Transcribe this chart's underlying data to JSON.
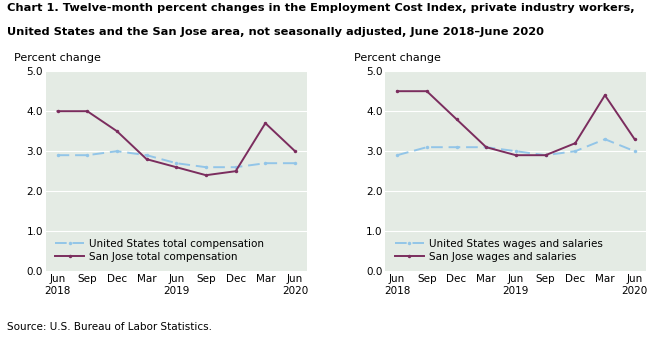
{
  "title_line1": "Chart 1. Twelve-month percent changes in the Employment Cost Index, private industry workers,",
  "title_line2": "United States and the San Jose area, not seasonally adjusted, June 2018–June 2020",
  "source": "Source: U.S. Bureau of Labor Statistics.",
  "x_labels": [
    "Jun\n2018",
    "Sep",
    "Dec",
    "Mar",
    "Jun\n2019",
    "Sep",
    "Dec",
    "Mar",
    "Jun\n2020"
  ],
  "x_positions": [
    0,
    1,
    2,
    3,
    4,
    5,
    6,
    7,
    8
  ],
  "left_chart": {
    "ylabel": "Percent change",
    "us_total_comp": [
      2.9,
      2.9,
      3.0,
      2.9,
      2.7,
      2.6,
      2.6,
      2.7,
      2.7
    ],
    "sj_total_comp": [
      4.0,
      4.0,
      3.5,
      2.8,
      2.6,
      2.4,
      2.5,
      3.7,
      3.0
    ],
    "legend1": "United States total compensation",
    "legend2": "San Jose total compensation"
  },
  "right_chart": {
    "ylabel": "Percent change",
    "us_wages_sal": [
      2.9,
      3.1,
      3.1,
      3.1,
      3.0,
      2.9,
      3.0,
      3.3,
      3.0
    ],
    "sj_wages_sal": [
      4.5,
      4.5,
      3.8,
      3.1,
      2.9,
      2.9,
      3.2,
      4.4,
      3.3
    ],
    "legend1": "United States wages and salaries",
    "legend2": "San Jose wages and salaries"
  },
  "ylim": [
    0.0,
    5.0
  ],
  "yticks": [
    0.0,
    1.0,
    2.0,
    3.0,
    4.0,
    5.0
  ],
  "us_color": "#92C5E8",
  "sj_color": "#7B2D5E",
  "bg_color": "#E4EBE4",
  "grid_color": "#FFFFFF",
  "title_fontsize": 8.2,
  "ylabel_fontsize": 8,
  "tick_fontsize": 7.5,
  "legend_fontsize": 7.5,
  "source_fontsize": 7.5
}
